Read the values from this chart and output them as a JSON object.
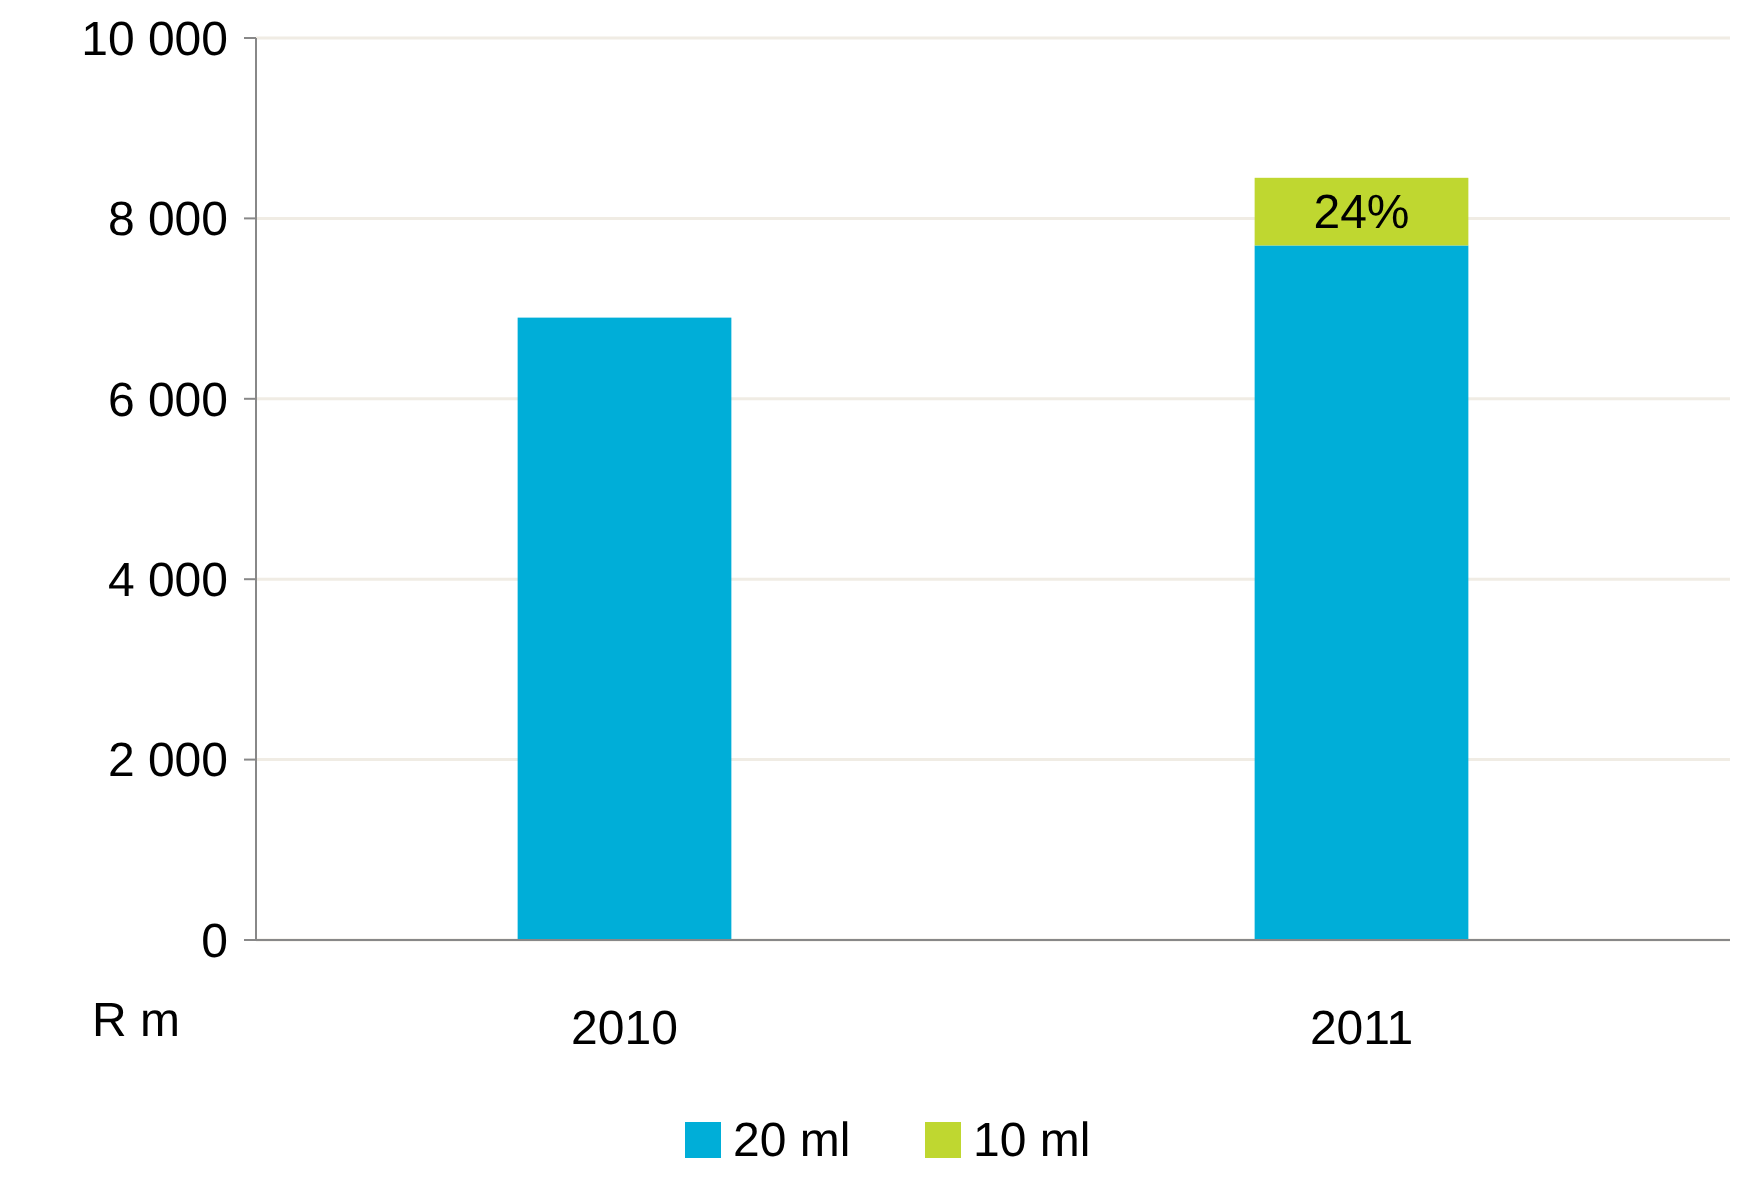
{
  "chart_data": {
    "type": "bar",
    "stacked": true,
    "ylabel": "R m",
    "categories": [
      "2010",
      "2011"
    ],
    "series": [
      {
        "name": "20 ml",
        "color": "#00aed8",
        "values": [
          6900,
          7700
        ]
      },
      {
        "name": "10 ml",
        "color": "#bfd730",
        "values": [
          null,
          750
        ]
      }
    ],
    "ylim": [
      0,
      10000
    ],
    "yticks": [
      {
        "value": 0,
        "label": "0"
      },
      {
        "value": 2000,
        "label": "2 000"
      },
      {
        "value": 4000,
        "label": "4 000"
      },
      {
        "value": 6000,
        "label": "6 000"
      },
      {
        "value": 8000,
        "label": "8 000"
      },
      {
        "value": 10000,
        "label": "10 000"
      }
    ],
    "grid": "y",
    "legend": "bottom",
    "annotations": [
      "24%"
    ]
  }
}
